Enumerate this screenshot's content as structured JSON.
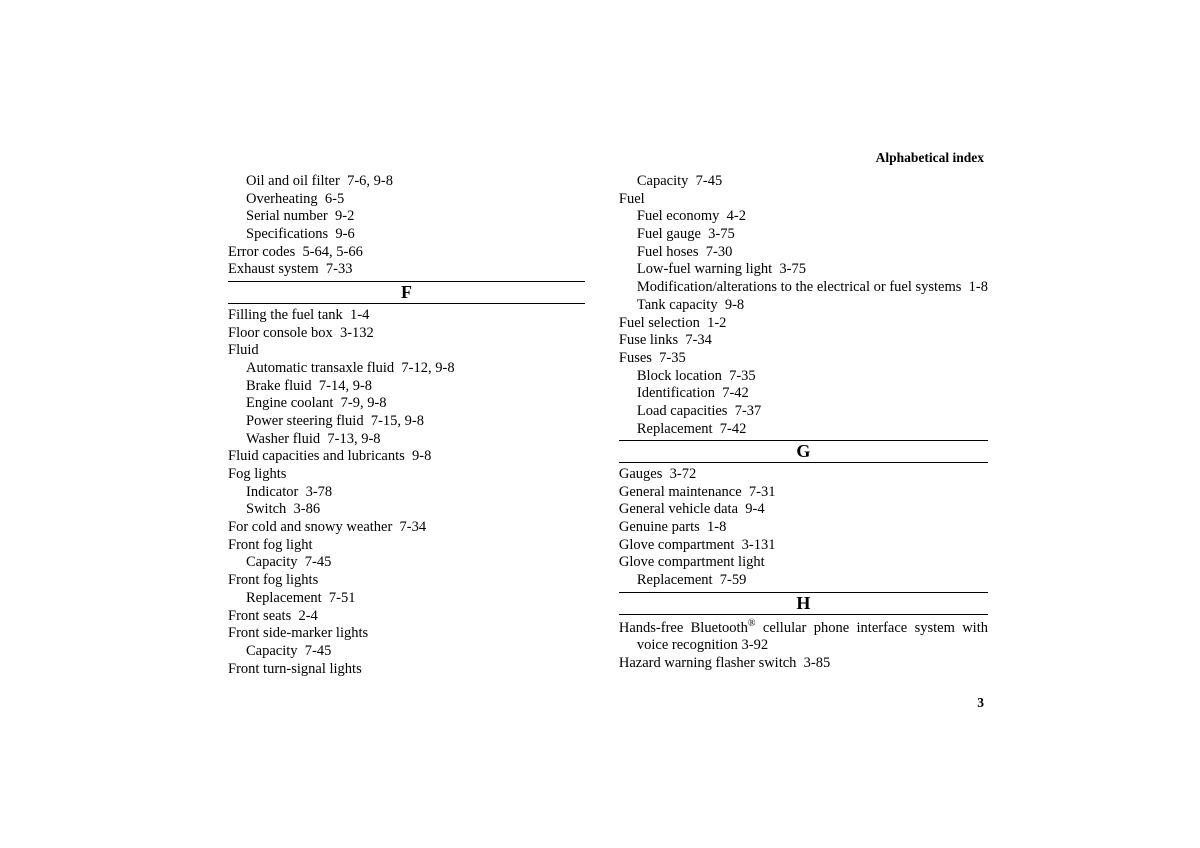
{
  "header": {
    "label": "Alphabetical index"
  },
  "page_number": "3",
  "left": {
    "pre_entries": [
      {
        "sub": true,
        "text": "Oil and oil filter  7-6, 9-8"
      },
      {
        "sub": true,
        "text": "Overheating  6-5"
      },
      {
        "sub": true,
        "text": "Serial number  9-2"
      },
      {
        "sub": true,
        "text": "Specifications  9-6"
      },
      {
        "sub": false,
        "text": "Error codes  5-64, 5-66"
      },
      {
        "sub": false,
        "text": "Exhaust system  7-33"
      }
    ],
    "letter_F": "F",
    "f_entries": [
      {
        "sub": false,
        "text": "Filling the fuel tank  1-4"
      },
      {
        "sub": false,
        "text": "Floor console box  3-132"
      },
      {
        "sub": false,
        "text": "Fluid"
      },
      {
        "sub": true,
        "text": "Automatic transaxle fluid  7-12, 9-8"
      },
      {
        "sub": true,
        "text": "Brake fluid  7-14, 9-8"
      },
      {
        "sub": true,
        "text": "Engine coolant  7-9, 9-8"
      },
      {
        "sub": true,
        "text": "Power steering fluid  7-15, 9-8"
      },
      {
        "sub": true,
        "text": "Washer fluid  7-13, 9-8"
      },
      {
        "sub": false,
        "text": "Fluid capacities and lubricants  9-8"
      },
      {
        "sub": false,
        "text": "Fog lights"
      },
      {
        "sub": true,
        "text": "Indicator  3-78"
      },
      {
        "sub": true,
        "text": "Switch  3-86"
      },
      {
        "sub": false,
        "text": "For cold and snowy weather  7-34"
      },
      {
        "sub": false,
        "text": "Front fog light"
      },
      {
        "sub": true,
        "text": "Capacity  7-45"
      },
      {
        "sub": false,
        "text": "Front fog lights"
      },
      {
        "sub": true,
        "text": "Replacement  7-51"
      },
      {
        "sub": false,
        "text": "Front seats  2-4"
      },
      {
        "sub": false,
        "text": "Front side-marker lights"
      },
      {
        "sub": true,
        "text": "Capacity  7-45"
      },
      {
        "sub": false,
        "text": "Front turn-signal lights"
      }
    ]
  },
  "right": {
    "pre_entries": [
      {
        "sub": true,
        "text": "Capacity  7-45"
      },
      {
        "sub": false,
        "text": "Fuel"
      },
      {
        "sub": true,
        "text": "Fuel economy  4-2"
      },
      {
        "sub": true,
        "text": "Fuel gauge  3-75"
      },
      {
        "sub": true,
        "text": "Fuel hoses  7-30"
      },
      {
        "sub": true,
        "text": "Low-fuel warning light  3-75"
      },
      {
        "sub": true,
        "text": "Modification/alterations to the electrical or fuel systems  1-8"
      },
      {
        "sub": true,
        "text": "Tank capacity  9-8"
      },
      {
        "sub": false,
        "text": "Fuel selection  1-2"
      },
      {
        "sub": false,
        "text": "Fuse links  7-34"
      },
      {
        "sub": false,
        "text": "Fuses  7-35"
      },
      {
        "sub": true,
        "text": "Block location  7-35"
      },
      {
        "sub": true,
        "text": "Identification  7-42"
      },
      {
        "sub": true,
        "text": "Load capacities  7-37"
      },
      {
        "sub": true,
        "text": "Replacement  7-42"
      }
    ],
    "letter_G": "G",
    "g_entries": [
      {
        "sub": false,
        "text": "Gauges  3-72"
      },
      {
        "sub": false,
        "text": "General maintenance  7-31"
      },
      {
        "sub": false,
        "text": "General vehicle data  9-4"
      },
      {
        "sub": false,
        "text": "Genuine parts  1-8"
      },
      {
        "sub": false,
        "text": "Glove compartment  3-131"
      },
      {
        "sub": false,
        "text": "Glove compartment light"
      },
      {
        "sub": true,
        "text": "Replacement  7-59"
      }
    ],
    "letter_H": "H",
    "bt_line1_pre": "Hands-free Bluetooth",
    "bt_sup": "®",
    "bt_line1_post": " cellular phone interface system with voice recognition  3-92",
    "h_rest": [
      {
        "sub": false,
        "text": "Hazard warning flasher switch  3-85"
      }
    ]
  }
}
